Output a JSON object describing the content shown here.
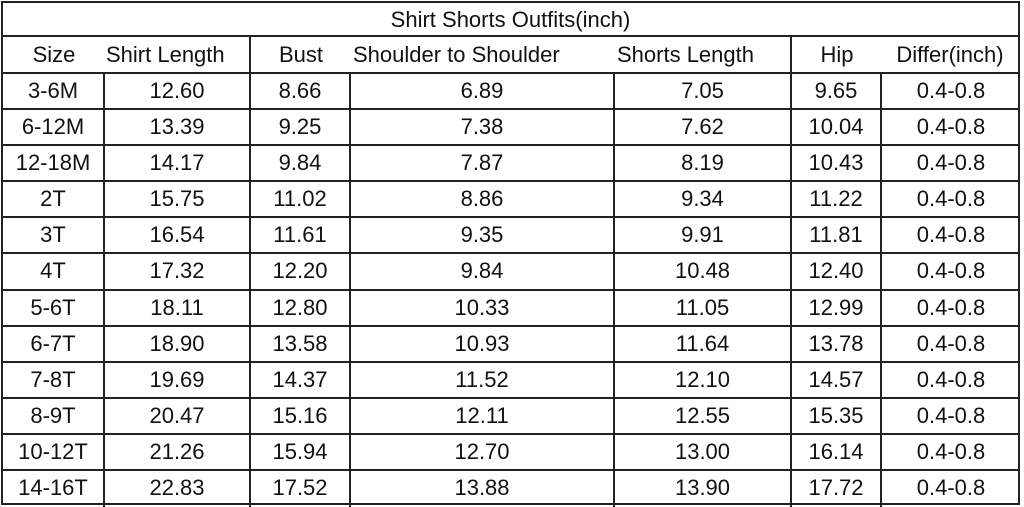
{
  "title": "Shirt Shorts Outfits(inch)",
  "headers": [
    "Size",
    "Shirt Length",
    "Bust",
    "Shoulder to Shoulder",
    "Shorts Length",
    "Hip",
    "Differ(inch)"
  ],
  "rows": [
    [
      "3-6M",
      "12.60",
      "8.66",
      "6.89",
      "7.05",
      "9.65",
      "0.4-0.8"
    ],
    [
      "6-12M",
      "13.39",
      "9.25",
      "7.38",
      "7.62",
      "10.04",
      "0.4-0.8"
    ],
    [
      "12-18M",
      "14.17",
      "9.84",
      "7.87",
      "8.19",
      "10.43",
      "0.4-0.8"
    ],
    [
      "2T",
      "15.75",
      "11.02",
      "8.86",
      "9.34",
      "11.22",
      "0.4-0.8"
    ],
    [
      "3T",
      "16.54",
      "11.61",
      "9.35",
      "9.91",
      "11.81",
      "0.4-0.8"
    ],
    [
      "4T",
      "17.32",
      "12.20",
      "9.84",
      "10.48",
      "12.40",
      "0.4-0.8"
    ],
    [
      "5-6T",
      "18.11",
      "12.80",
      "10.33",
      "11.05",
      "12.99",
      "0.4-0.8"
    ],
    [
      "6-7T",
      "18.90",
      "13.58",
      "10.93",
      "11.64",
      "13.78",
      "0.4-0.8"
    ],
    [
      "7-8T",
      "19.69",
      "14.37",
      "11.52",
      "12.10",
      "14.57",
      "0.4-0.8"
    ],
    [
      "8-9T",
      "20.47",
      "15.16",
      "12.11",
      "12.55",
      "15.35",
      "0.4-0.8"
    ],
    [
      "10-12T",
      "21.26",
      "15.94",
      "12.70",
      "13.00",
      "16.14",
      "0.4-0.8"
    ],
    [
      "14-16T",
      "22.83",
      "17.52",
      "13.88",
      "13.90",
      "17.72",
      "0.4-0.8"
    ]
  ]
}
